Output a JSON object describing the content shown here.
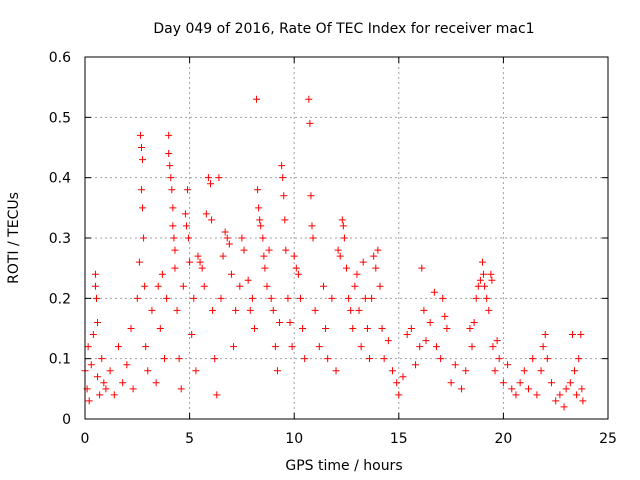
{
  "chart_data": {
    "type": "scatter",
    "title": "Day 049 of 2016, Rate Of TEC Index for receiver mac1",
    "xlabel": "GPS time / hours",
    "ylabel": "ROTI / TECUs",
    "xlim": [
      0,
      25
    ],
    "ylim": [
      0,
      0.6
    ],
    "xticks": [
      0,
      5,
      10,
      15,
      20,
      25
    ],
    "yticks": [
      0,
      0.1,
      0.2,
      0.3,
      0.4,
      0.5,
      0.6
    ],
    "xtick_labels": [
      "0",
      "5",
      "10",
      "15",
      "20",
      "25"
    ],
    "ytick_labels": [
      "0",
      "0.1",
      "0.2",
      "0.3",
      "0.4",
      "0.5",
      "0.6"
    ],
    "grid": true,
    "marker": "+",
    "color": "#ff0000",
    "series": [
      {
        "name": "ROTI mac1",
        "points": [
          [
            0.0,
            0.08
          ],
          [
            0.1,
            0.05
          ],
          [
            0.15,
            0.12
          ],
          [
            0.2,
            0.03
          ],
          [
            0.3,
            0.09
          ],
          [
            0.4,
            0.14
          ],
          [
            0.5,
            0.24
          ],
          [
            0.5,
            0.22
          ],
          [
            0.55,
            0.2
          ],
          [
            0.6,
            0.16
          ],
          [
            0.6,
            0.07
          ],
          [
            0.7,
            0.04
          ],
          [
            0.8,
            0.1
          ],
          [
            0.9,
            0.06
          ],
          [
            1.0,
            0.05
          ],
          [
            1.2,
            0.08
          ],
          [
            1.4,
            0.04
          ],
          [
            1.6,
            0.12
          ],
          [
            1.8,
            0.06
          ],
          [
            2.0,
            0.09
          ],
          [
            2.2,
            0.15
          ],
          [
            2.3,
            0.05
          ],
          [
            2.5,
            0.2
          ],
          [
            2.6,
            0.26
          ],
          [
            2.65,
            0.47
          ],
          [
            2.7,
            0.45
          ],
          [
            2.75,
            0.43
          ],
          [
            2.7,
            0.38
          ],
          [
            2.75,
            0.35
          ],
          [
            2.8,
            0.3
          ],
          [
            2.85,
            0.22
          ],
          [
            2.9,
            0.12
          ],
          [
            3.0,
            0.08
          ],
          [
            3.2,
            0.18
          ],
          [
            3.4,
            0.06
          ],
          [
            3.5,
            0.22
          ],
          [
            3.6,
            0.15
          ],
          [
            3.7,
            0.24
          ],
          [
            3.8,
            0.1
          ],
          [
            3.9,
            0.2
          ],
          [
            4.0,
            0.47
          ],
          [
            4.0,
            0.44
          ],
          [
            4.05,
            0.42
          ],
          [
            4.1,
            0.4
          ],
          [
            4.15,
            0.38
          ],
          [
            4.2,
            0.35
          ],
          [
            4.2,
            0.32
          ],
          [
            4.25,
            0.3
          ],
          [
            4.3,
            0.28
          ],
          [
            4.3,
            0.25
          ],
          [
            4.4,
            0.18
          ],
          [
            4.5,
            0.1
          ],
          [
            4.6,
            0.05
          ],
          [
            4.7,
            0.22
          ],
          [
            4.8,
            0.34
          ],
          [
            4.85,
            0.32
          ],
          [
            4.9,
            0.38
          ],
          [
            4.95,
            0.3
          ],
          [
            5.0,
            0.26
          ],
          [
            5.1,
            0.14
          ],
          [
            5.2,
            0.2
          ],
          [
            5.3,
            0.08
          ],
          [
            5.4,
            0.27
          ],
          [
            5.5,
            0.26
          ],
          [
            5.6,
            0.25
          ],
          [
            5.7,
            0.22
          ],
          [
            5.8,
            0.34
          ],
          [
            5.9,
            0.4
          ],
          [
            6.0,
            0.39
          ],
          [
            6.05,
            0.33
          ],
          [
            6.1,
            0.18
          ],
          [
            6.2,
            0.1
          ],
          [
            6.3,
            0.04
          ],
          [
            6.4,
            0.4
          ],
          [
            6.5,
            0.2
          ],
          [
            6.6,
            0.27
          ],
          [
            6.7,
            0.31
          ],
          [
            6.8,
            0.3
          ],
          [
            6.9,
            0.29
          ],
          [
            7.0,
            0.24
          ],
          [
            7.1,
            0.12
          ],
          [
            7.2,
            0.18
          ],
          [
            7.4,
            0.22
          ],
          [
            7.5,
            0.3
          ],
          [
            7.6,
            0.28
          ],
          [
            7.8,
            0.23
          ],
          [
            7.9,
            0.18
          ],
          [
            8.0,
            0.2
          ],
          [
            8.1,
            0.15
          ],
          [
            8.2,
            0.53
          ],
          [
            8.25,
            0.38
          ],
          [
            8.3,
            0.35
          ],
          [
            8.35,
            0.33
          ],
          [
            8.4,
            0.32
          ],
          [
            8.5,
            0.3
          ],
          [
            8.55,
            0.27
          ],
          [
            8.6,
            0.25
          ],
          [
            8.7,
            0.22
          ],
          [
            8.8,
            0.28
          ],
          [
            8.9,
            0.2
          ],
          [
            9.0,
            0.18
          ],
          [
            9.1,
            0.12
          ],
          [
            9.2,
            0.08
          ],
          [
            9.3,
            0.16
          ],
          [
            9.4,
            0.42
          ],
          [
            9.45,
            0.4
          ],
          [
            9.5,
            0.37
          ],
          [
            9.55,
            0.33
          ],
          [
            9.6,
            0.28
          ],
          [
            9.7,
            0.2
          ],
          [
            9.8,
            0.16
          ],
          [
            9.9,
            0.12
          ],
          [
            10.0,
            0.27
          ],
          [
            10.1,
            0.25
          ],
          [
            10.2,
            0.24
          ],
          [
            10.3,
            0.2
          ],
          [
            10.4,
            0.15
          ],
          [
            10.5,
            0.1
          ],
          [
            10.7,
            0.53
          ],
          [
            10.75,
            0.49
          ],
          [
            10.8,
            0.37
          ],
          [
            10.85,
            0.32
          ],
          [
            10.9,
            0.3
          ],
          [
            11.0,
            0.18
          ],
          [
            11.2,
            0.12
          ],
          [
            11.4,
            0.22
          ],
          [
            11.5,
            0.15
          ],
          [
            11.6,
            0.1
          ],
          [
            11.8,
            0.2
          ],
          [
            12.0,
            0.08
          ],
          [
            12.1,
            0.28
          ],
          [
            12.2,
            0.27
          ],
          [
            12.3,
            0.33
          ],
          [
            12.35,
            0.32
          ],
          [
            12.4,
            0.3
          ],
          [
            12.5,
            0.25
          ],
          [
            12.6,
            0.2
          ],
          [
            12.7,
            0.18
          ],
          [
            12.8,
            0.15
          ],
          [
            12.9,
            0.22
          ],
          [
            13.0,
            0.24
          ],
          [
            13.1,
            0.18
          ],
          [
            13.2,
            0.12
          ],
          [
            13.3,
            0.26
          ],
          [
            13.4,
            0.2
          ],
          [
            13.5,
            0.15
          ],
          [
            13.6,
            0.1
          ],
          [
            13.7,
            0.2
          ],
          [
            13.8,
            0.27
          ],
          [
            13.9,
            0.25
          ],
          [
            14.0,
            0.28
          ],
          [
            14.1,
            0.22
          ],
          [
            14.2,
            0.15
          ],
          [
            14.3,
            0.1
          ],
          [
            14.5,
            0.13
          ],
          [
            14.7,
            0.08
          ],
          [
            14.9,
            0.06
          ],
          [
            15.0,
            0.04
          ],
          [
            15.2,
            0.07
          ],
          [
            15.4,
            0.14
          ],
          [
            15.6,
            0.15
          ],
          [
            15.8,
            0.09
          ],
          [
            16.0,
            0.12
          ],
          [
            16.1,
            0.25
          ],
          [
            16.2,
            0.18
          ],
          [
            16.3,
            0.13
          ],
          [
            16.5,
            0.16
          ],
          [
            16.7,
            0.21
          ],
          [
            16.8,
            0.12
          ],
          [
            17.0,
            0.1
          ],
          [
            17.1,
            0.2
          ],
          [
            17.2,
            0.17
          ],
          [
            17.3,
            0.15
          ],
          [
            17.5,
            0.06
          ],
          [
            17.7,
            0.09
          ],
          [
            18.0,
            0.05
          ],
          [
            18.2,
            0.08
          ],
          [
            18.4,
            0.15
          ],
          [
            18.5,
            0.12
          ],
          [
            18.6,
            0.16
          ],
          [
            18.7,
            0.2
          ],
          [
            18.8,
            0.22
          ],
          [
            18.9,
            0.23
          ],
          [
            19.0,
            0.26
          ],
          [
            19.05,
            0.24
          ],
          [
            19.1,
            0.22
          ],
          [
            19.2,
            0.2
          ],
          [
            19.3,
            0.18
          ],
          [
            19.4,
            0.24
          ],
          [
            19.45,
            0.23
          ],
          [
            19.5,
            0.12
          ],
          [
            19.6,
            0.08
          ],
          [
            19.7,
            0.13
          ],
          [
            19.8,
            0.1
          ],
          [
            20.0,
            0.06
          ],
          [
            20.2,
            0.09
          ],
          [
            20.4,
            0.05
          ],
          [
            20.6,
            0.04
          ],
          [
            20.8,
            0.06
          ],
          [
            21.0,
            0.08
          ],
          [
            21.2,
            0.05
          ],
          [
            21.4,
            0.1
          ],
          [
            21.6,
            0.04
          ],
          [
            21.8,
            0.08
          ],
          [
            21.9,
            0.12
          ],
          [
            22.0,
            0.14
          ],
          [
            22.1,
            0.1
          ],
          [
            22.3,
            0.06
          ],
          [
            22.5,
            0.03
          ],
          [
            22.7,
            0.04
          ],
          [
            22.9,
            0.02
          ],
          [
            23.0,
            0.05
          ],
          [
            23.2,
            0.06
          ],
          [
            23.3,
            0.14
          ],
          [
            23.4,
            0.08
          ],
          [
            23.5,
            0.04
          ],
          [
            23.6,
            0.1
          ],
          [
            23.7,
            0.14
          ],
          [
            23.75,
            0.05
          ],
          [
            23.8,
            0.03
          ]
        ]
      }
    ]
  }
}
